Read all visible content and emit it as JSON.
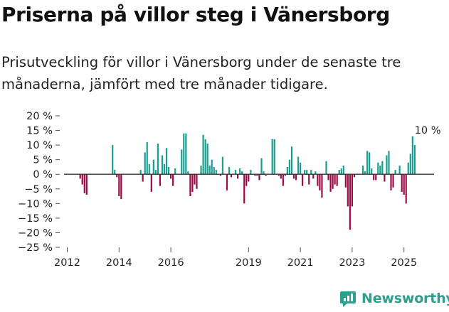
{
  "title": "Priserna på villor steg i Vänersborg",
  "subtitle": "Prisutveckling för villor i Vänersborg under de senaste tre månaderna, jämfört med tre månader tidigare.",
  "brand": {
    "name": "Newsworthy",
    "icon": "newsworthy-logo-icon"
  },
  "colors": {
    "positive": "#1a9e8f",
    "negative": "#9b0a45",
    "zero_line": "#333333",
    "text": "#222222"
  },
  "chart_data": {
    "type": "bar",
    "title": "Priserna på villor steg i Vänersborg",
    "xlabel": "",
    "ylabel": "",
    "ylim": [
      -25,
      20
    ],
    "y_ticks": [
      20,
      15,
      10,
      5,
      0,
      -5,
      -10,
      -15,
      -20,
      -25
    ],
    "y_tick_labels": [
      "20 %",
      "15 %",
      "10 %",
      "5 %",
      "0 %",
      "−5 %",
      "−10 %",
      "−15 %",
      "−20 %",
      "−25 %"
    ],
    "x_ticks": [
      2012,
      2014,
      2016,
      2019,
      2021,
      2023,
      2025
    ],
    "start_year": 2012.5,
    "period": "month",
    "annotation": {
      "text": "10 %",
      "index": 161
    },
    "values": [
      -1.5,
      -3.5,
      -6.5,
      -7,
      0,
      0,
      0,
      0,
      0,
      0,
      0,
      0,
      0,
      0,
      0,
      10,
      1.5,
      -1,
      -7.5,
      -8.5,
      0,
      0,
      0,
      0,
      0,
      0,
      0,
      0,
      1.5,
      -2.5,
      7.5,
      11,
      3.5,
      -6,
      5,
      1.5,
      10.5,
      -4,
      6.5,
      3.5,
      9,
      2.5,
      -1.5,
      -4,
      2,
      0,
      0,
      8.5,
      14,
      14,
      1,
      -7.5,
      -6,
      -3.5,
      -5,
      0,
      3,
      13.5,
      12,
      10.5,
      3,
      5,
      2.5,
      1.5,
      0,
      -0.5,
      6,
      0,
      -5.5,
      2.5,
      -1,
      0,
      1.5,
      -1.5,
      2,
      1,
      -10,
      -4,
      -2.5,
      1.5,
      0,
      -0.5,
      -0.5,
      -2,
      5.5,
      1,
      -0.5,
      0,
      0,
      12,
      12,
      0,
      -0.5,
      -1.5,
      -4,
      -0.5,
      2.5,
      5,
      9.5,
      -1.5,
      -2,
      6,
      4,
      -4,
      1.5,
      1.5,
      -3.5,
      1.5,
      -1.5,
      1,
      -4,
      -5.5,
      -8,
      0,
      4.5,
      -2,
      -6,
      -5,
      -3.5,
      -4,
      1.5,
      2,
      3,
      -4.5,
      -11,
      -19,
      -11,
      -1,
      0,
      0,
      0,
      3,
      1,
      8,
      7.5,
      2,
      -2,
      -2,
      4,
      3,
      4.5,
      -2.5,
      6.5,
      8,
      -5.5,
      -4.5,
      1.5,
      0,
      3,
      -6,
      -7,
      -10,
      4,
      7,
      13,
      10
    ]
  }
}
